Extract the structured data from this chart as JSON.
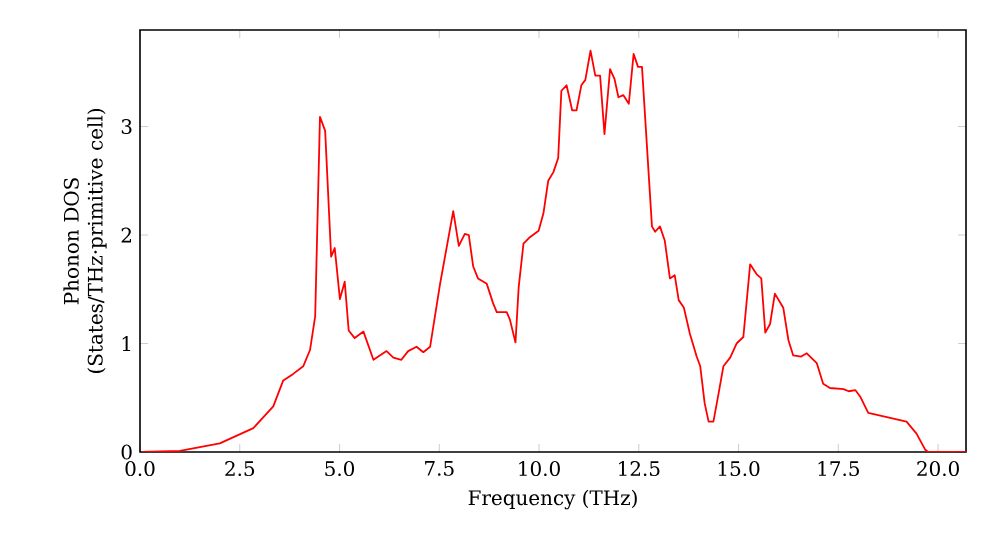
{
  "chart_data": {
    "type": "line",
    "xlabel": "Frequency (THz)",
    "ylabel": "Phonon DOS (States/THz·primitive cell)",
    "xlim": [
      0,
      20.7
    ],
    "ylim": [
      0,
      3.89
    ],
    "xticks": [
      {
        "value": 0,
        "label": "0.0"
      },
      2.5,
      {
        "value": 5,
        "label": "5.0"
      },
      7.5,
      {
        "value": 10,
        "label": "10.0"
      },
      12.5,
      {
        "value": 15,
        "label": "15.0"
      },
      17.5,
      {
        "value": 20,
        "label": "20.0"
      }
    ],
    "yticks": [
      0,
      1,
      2,
      3
    ],
    "series": [
      {
        "color": "#ff0000",
        "x": [
          0.05,
          1.0,
          2.0,
          2.84,
          3.34,
          3.59,
          3.84,
          4.09,
          4.26,
          4.39,
          4.51,
          4.64,
          4.79,
          4.88,
          5.01,
          5.13,
          5.23,
          5.38,
          5.6,
          5.85,
          6.18,
          6.35,
          6.55,
          6.72,
          6.93,
          7.1,
          7.27,
          7.52,
          7.85,
          7.99,
          8.14,
          8.24,
          8.35,
          8.47,
          8.69,
          8.85,
          8.94,
          9.19,
          9.27,
          9.41,
          9.49,
          9.61,
          9.77,
          9.99,
          10.11,
          10.23,
          10.36,
          10.48,
          10.56,
          10.69,
          10.83,
          10.94,
          11.06,
          11.16,
          11.29,
          11.41,
          11.53,
          11.64,
          11.78,
          11.89,
          11.99,
          12.11,
          12.25,
          12.37,
          12.48,
          12.58,
          12.83,
          12.91,
          13.03,
          13.15,
          13.28,
          13.4,
          13.5,
          13.63,
          13.78,
          13.95,
          14.04,
          14.15,
          14.25,
          14.37,
          14.5,
          14.62,
          14.79,
          14.95,
          15.12,
          15.29,
          15.45,
          15.57,
          15.67,
          15.79,
          15.91,
          16.12,
          16.25,
          16.37,
          16.57,
          16.71,
          16.96,
          17.12,
          17.29,
          17.63,
          17.76,
          17.93,
          18.05,
          18.25,
          19.21,
          19.46,
          19.68,
          19.75,
          20.7
        ],
        "values": [
          0,
          0.01,
          0.08,
          0.22,
          0.42,
          0.66,
          0.72,
          0.79,
          0.94,
          1.25,
          3.09,
          2.96,
          1.8,
          1.88,
          1.41,
          1.57,
          1.12,
          1.05,
          1.11,
          0.85,
          0.93,
          0.87,
          0.85,
          0.93,
          0.97,
          0.92,
          0.97,
          1.55,
          2.22,
          1.9,
          2.01,
          2.0,
          1.71,
          1.6,
          1.55,
          1.37,
          1.29,
          1.29,
          1.22,
          1.01,
          1.52,
          1.92,
          1.98,
          2.04,
          2.2,
          2.5,
          2.58,
          2.71,
          3.33,
          3.38,
          3.15,
          3.15,
          3.38,
          3.43,
          3.7,
          3.47,
          3.47,
          2.93,
          3.53,
          3.44,
          3.27,
          3.29,
          3.21,
          3.67,
          3.55,
          3.55,
          2.08,
          2.03,
          2.08,
          1.95,
          1.6,
          1.63,
          1.4,
          1.33,
          1.09,
          0.88,
          0.79,
          0.45,
          0.28,
          0.28,
          0.54,
          0.79,
          0.87,
          1.0,
          1.06,
          1.73,
          1.64,
          1.6,
          1.1,
          1.18,
          1.46,
          1.33,
          1.03,
          0.89,
          0.88,
          0.91,
          0.82,
          0.63,
          0.59,
          0.58,
          0.56,
          0.57,
          0.51,
          0.36,
          0.28,
          0.17,
          0.02,
          0,
          0
        ]
      }
    ]
  }
}
